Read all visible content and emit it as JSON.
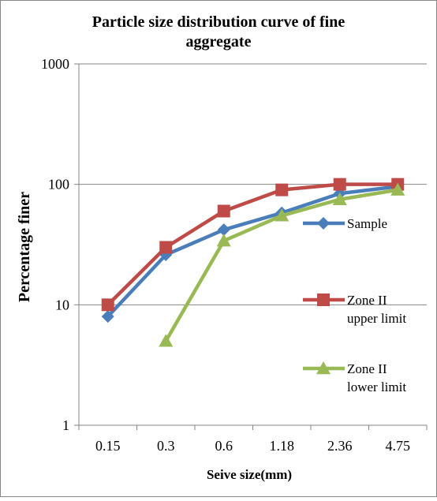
{
  "chart_data": {
    "type": "line",
    "title": "Particle size distribution curve of fine aggregate",
    "title_lines": [
      "Particle size distribution curve of fine",
      "aggregate"
    ],
    "xlabel": "Seive size(mm)",
    "ylabel": "Percentage finer",
    "y_scale": "log",
    "ylim": [
      1,
      1000
    ],
    "y_ticks": [
      "1",
      "10",
      "100",
      "1000"
    ],
    "grid": "horizontal",
    "legend_position": "right",
    "categories": [
      "0.15",
      "0.3",
      "0.6",
      "1.18",
      "2.36",
      "4.75"
    ],
    "series": [
      {
        "name": "Sample",
        "legend_lines": [
          "Sample"
        ],
        "marker": "diamond",
        "color": "#4a7ebb",
        "values": [
          8,
          26,
          42,
          58,
          84,
          96
        ]
      },
      {
        "name": "Zone II upper limit",
        "legend_lines": [
          "Zone II",
          "upper limit"
        ],
        "marker": "square",
        "color": "#be4b48",
        "values": [
          10,
          30,
          60,
          90,
          100,
          100
        ]
      },
      {
        "name": "Zone II lower limit",
        "legend_lines": [
          "Zone II",
          "lower limit"
        ],
        "marker": "triangle",
        "color": "#98b954",
        "values": [
          null,
          5,
          34,
          55,
          75,
          90
        ]
      }
    ]
  }
}
